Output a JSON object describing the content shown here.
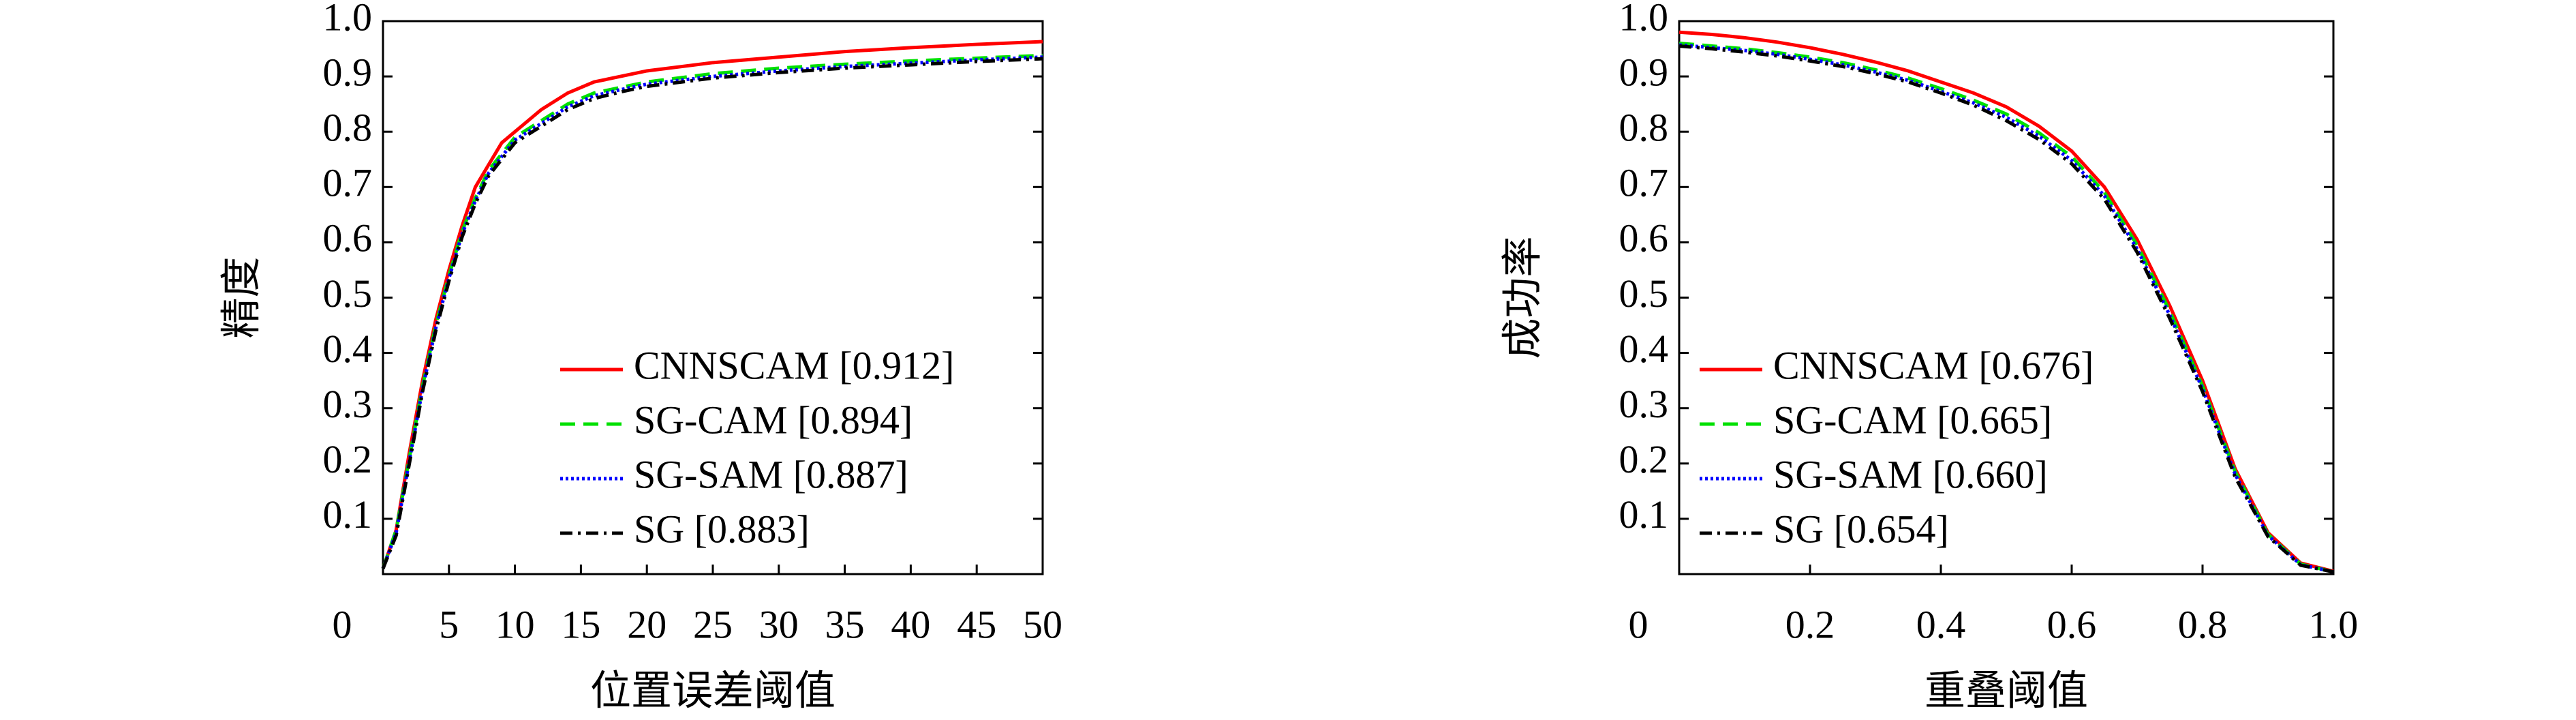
{
  "chart_data": [
    {
      "type": "line",
      "xlabel": "位置误差阈值",
      "ylabel": "精度",
      "x": [
        0,
        1,
        2,
        3,
        4,
        5,
        6,
        7,
        8,
        9,
        10,
        12,
        14,
        16,
        18,
        20,
        25,
        30,
        35,
        40,
        45,
        50
      ],
      "series": [
        {
          "name": "CNNSCAM [0.912]",
          "color": "#ff0000",
          "style": "solid",
          "values": [
            0.01,
            0.08,
            0.22,
            0.35,
            0.46,
            0.55,
            0.63,
            0.7,
            0.74,
            0.78,
            0.8,
            0.84,
            0.87,
            0.89,
            0.9,
            0.91,
            0.925,
            0.935,
            0.945,
            0.952,
            0.958,
            0.963
          ]
        },
        {
          "name": "SG-CAM [0.894]",
          "color": "#00e000",
          "style": "dashed",
          "values": [
            0.01,
            0.08,
            0.21,
            0.34,
            0.45,
            0.54,
            0.62,
            0.68,
            0.73,
            0.76,
            0.79,
            0.82,
            0.85,
            0.87,
            0.88,
            0.89,
            0.905,
            0.915,
            0.922,
            0.928,
            0.933,
            0.938
          ]
        },
        {
          "name": "SG-SAM [0.887]",
          "color": "#0000ff",
          "style": "dotted",
          "values": [
            0.01,
            0.075,
            0.205,
            0.335,
            0.445,
            0.535,
            0.615,
            0.675,
            0.725,
            0.755,
            0.785,
            0.815,
            0.845,
            0.865,
            0.876,
            0.886,
            0.9,
            0.91,
            0.918,
            0.924,
            0.93,
            0.935
          ]
        },
        {
          "name": "SG [0.883]",
          "color": "#000000",
          "style": "dashdot",
          "values": [
            0.01,
            0.07,
            0.2,
            0.33,
            0.44,
            0.53,
            0.61,
            0.67,
            0.72,
            0.75,
            0.78,
            0.81,
            0.84,
            0.86,
            0.872,
            0.882,
            0.897,
            0.907,
            0.915,
            0.921,
            0.927,
            0.932
          ]
        }
      ],
      "xlim": [
        0,
        50
      ],
      "ylim": [
        0,
        1
      ],
      "xticks": [
        0,
        5,
        10,
        15,
        20,
        25,
        30,
        35,
        40,
        45,
        50
      ],
      "yticks": [
        0.1,
        0.2,
        0.3,
        0.4,
        0.5,
        0.6,
        0.7,
        0.8,
        0.9,
        {
          "value": 1,
          "label": "1.0"
        }
      ],
      "grid": false,
      "legend": "lower right"
    },
    {
      "type": "line",
      "xlabel": "重叠阈值",
      "ylabel": "成功率",
      "x": [
        0,
        0.05,
        0.1,
        0.15,
        0.2,
        0.25,
        0.3,
        0.35,
        0.4,
        0.45,
        0.5,
        0.55,
        0.6,
        0.65,
        0.7,
        0.75,
        0.8,
        0.85,
        0.9,
        0.95,
        1
      ],
      "series": [
        {
          "name": "CNNSCAM [0.676]",
          "color": "#ff0000",
          "style": "solid",
          "values": [
            0.98,
            0.976,
            0.97,
            0.962,
            0.952,
            0.94,
            0.926,
            0.91,
            0.89,
            0.87,
            0.845,
            0.81,
            0.765,
            0.7,
            0.605,
            0.485,
            0.35,
            0.19,
            0.075,
            0.02,
            0.005
          ]
        },
        {
          "name": "SG-CAM [0.665]",
          "color": "#00e000",
          "style": "dashed",
          "values": [
            0.96,
            0.955,
            0.95,
            0.943,
            0.935,
            0.925,
            0.912,
            0.897,
            0.878,
            0.857,
            0.832,
            0.798,
            0.755,
            0.69,
            0.595,
            0.475,
            0.34,
            0.185,
            0.072,
            0.018,
            0.004
          ]
        },
        {
          "name": "SG-SAM [0.660]",
          "color": "#0000ff",
          "style": "dotted",
          "values": [
            0.957,
            0.952,
            0.947,
            0.94,
            0.931,
            0.921,
            0.908,
            0.893,
            0.873,
            0.852,
            0.826,
            0.792,
            0.748,
            0.684,
            0.588,
            0.468,
            0.335,
            0.18,
            0.07,
            0.017,
            0.004
          ]
        },
        {
          "name": "SG [0.654]",
          "color": "#000000",
          "style": "dashdot",
          "values": [
            0.955,
            0.95,
            0.944,
            0.937,
            0.928,
            0.918,
            0.905,
            0.89,
            0.87,
            0.848,
            0.82,
            0.786,
            0.742,
            0.678,
            0.582,
            0.462,
            0.33,
            0.175,
            0.068,
            0.016,
            0.004
          ]
        }
      ],
      "xlim": [
        0,
        1
      ],
      "ylim": [
        0,
        1
      ],
      "xticks": [
        0,
        0.2,
        0.4,
        0.6,
        0.8,
        {
          "value": 1,
          "label": "1.0"
        }
      ],
      "yticks": [
        0.1,
        0.2,
        0.3,
        0.4,
        0.5,
        0.6,
        0.7,
        0.8,
        0.9,
        {
          "value": 1,
          "label": "1.0"
        }
      ],
      "grid": false,
      "legend": "lower left"
    }
  ]
}
